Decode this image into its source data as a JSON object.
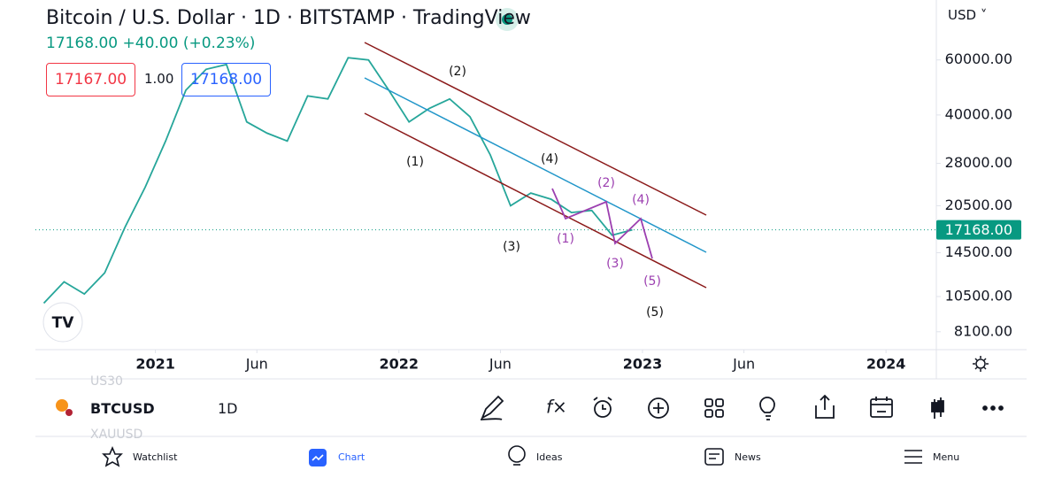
{
  "header": {
    "title": "Bitcoin / U.S. Dollar · 1D · BITSTAMP · TradingView",
    "last": "17168.00",
    "change": "+40.00 (+0.23%)"
  },
  "order": {
    "sell": "17167.00",
    "spread": "1.00",
    "buy": "17168.00"
  },
  "currency": "USD",
  "chart_data": {
    "type": "line",
    "x": [
      "2020-07",
      "2020-08",
      "2020-09",
      "2020-10",
      "2020-11",
      "2020-12",
      "2021-01",
      "2021-02",
      "2021-03",
      "2021-04",
      "2021-05",
      "2021-06",
      "2021-07",
      "2021-08",
      "2021-09",
      "2021-10",
      "2021-11",
      "2021-12",
      "2022-01",
      "2022-02",
      "2022-03",
      "2022-04",
      "2022-05",
      "2022-06",
      "2022-07",
      "2022-08",
      "2022-09",
      "2022-10",
      "2022-11",
      "2022-12"
    ],
    "values": [
      10000,
      11700,
      10700,
      12500,
      17500,
      23500,
      33000,
      48000,
      56000,
      58000,
      38000,
      35000,
      33000,
      46000,
      45000,
      61000,
      60000,
      48000,
      38000,
      42000,
      45000,
      39500,
      29800,
      20500,
      22500,
      21500,
      19500,
      19800,
      16500,
      17168
    ],
    "color": "#26a69a",
    "log": true,
    "ylim": [
      7100,
      93300
    ],
    "yticks": [
      {
        "value": 60000,
        "label": "60000.00"
      },
      {
        "value": 40000,
        "label": "40000.00"
      },
      {
        "value": 28000,
        "label": "28000.00"
      },
      {
        "value": 20500,
        "label": "20500.00"
      },
      {
        "value": 14500,
        "label": "14500.00"
      },
      {
        "value": 10500,
        "label": "10500.00"
      },
      {
        "value": 8100,
        "label": "8100.00"
      }
    ],
    "xlim": [
      "2020-07",
      "2024-03"
    ],
    "xticks": [
      {
        "value": "2021-01",
        "label": "2021"
      },
      {
        "value": "2021-06",
        "label": "Jun"
      },
      {
        "value": "2022-01",
        "label": "2022"
      },
      {
        "value": "2022-06",
        "label": "Jun"
      },
      {
        "value": "2023-01",
        "label": "2023"
      },
      {
        "value": "2023-06",
        "label": "Jun"
      },
      {
        "value": "2024-01",
        "label": "2024"
      }
    ],
    "last_price": {
      "value": 17168,
      "label": "17168.00"
    },
    "annotations": [
      {
        "text": "(1)",
        "color": "#111111"
      },
      {
        "text": "(2)",
        "color": "#111111"
      },
      {
        "text": "(3)",
        "color": "#111111"
      },
      {
        "text": "(4)",
        "color": "#111111"
      },
      {
        "text": "(5)",
        "color": "#111111"
      },
      {
        "text": "(1)",
        "color": "#9c3fb0"
      },
      {
        "text": "(2)",
        "color": "#9c3fb0"
      },
      {
        "text": "(3)",
        "color": "#9c3fb0"
      },
      {
        "text": "(4)",
        "color": "#9c3fb0"
      },
      {
        "text": "(5)",
        "color": "#9c3fb0"
      }
    ]
  },
  "toolbar": {
    "symbol": "BTCUSD",
    "interval": "1D",
    "above": "US30",
    "below": "XAUUSD"
  },
  "nav": [
    "Watchlist",
    "Chart",
    "Ideas",
    "News",
    "Menu"
  ]
}
